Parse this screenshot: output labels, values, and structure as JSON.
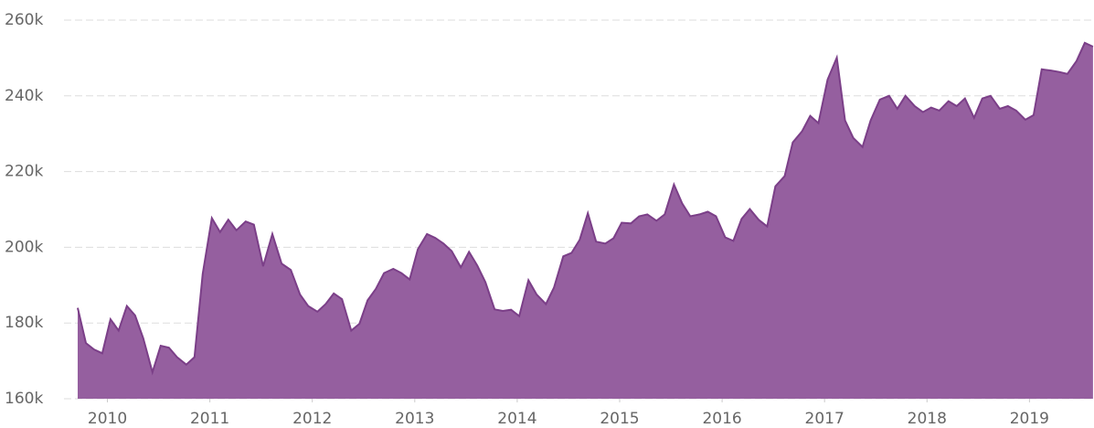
{
  "chart_data": {
    "type": "area",
    "color": "#955f9f",
    "line_color": "#7b3f88",
    "grid": true,
    "xlim": [
      2009.71,
      2019.63
    ],
    "xticks": [
      2010,
      2011,
      2012,
      2013,
      2014,
      2015,
      2016,
      2017,
      2018,
      2019
    ],
    "ylim": [
      160000,
      260000
    ],
    "yticks": [
      {
        "value": 160000,
        "label": "160k"
      },
      {
        "value": 180000,
        "label": "180k"
      },
      {
        "value": 200000,
        "label": "200k"
      },
      {
        "value": 220000,
        "label": "220k"
      },
      {
        "value": 240000,
        "label": "240k"
      },
      {
        "value": 260000,
        "label": "260k"
      }
    ],
    "x": [
      2009.71,
      2009.79,
      2009.87,
      2009.95,
      2010.03,
      2010.11,
      2010.19,
      2010.27,
      2010.35,
      2010.44,
      2010.52,
      2010.6,
      2010.68,
      2010.77,
      2010.85,
      2010.93,
      2011.02,
      2011.1,
      2011.18,
      2011.26,
      2011.35,
      2011.43,
      2011.52,
      2011.61,
      2011.7,
      2011.79,
      2011.88,
      2011.96,
      2012.05,
      2012.13,
      2012.21,
      2012.29,
      2012.38,
      2012.46,
      2012.54,
      2012.62,
      2012.7,
      2012.79,
      2012.87,
      2012.95,
      2013.03,
      2013.12,
      2013.2,
      2013.28,
      2013.36,
      2013.45,
      2013.53,
      2013.61,
      2013.69,
      2013.78,
      2013.86,
      2013.94,
      2014.02,
      2014.11,
      2014.19,
      2014.28,
      2014.36,
      2014.45,
      2014.53,
      2014.61,
      2014.69,
      2014.77,
      2014.86,
      2014.94,
      2015.02,
      2015.11,
      2015.19,
      2015.27,
      2015.36,
      2015.44,
      2015.53,
      2015.61,
      2015.69,
      2015.78,
      2015.86,
      2015.94,
      2016.03,
      2016.11,
      2016.19,
      2016.27,
      2016.36,
      2016.44,
      2016.52,
      2016.61,
      2016.69,
      2016.78,
      2016.86,
      2016.94,
      2017.03,
      2017.12,
      2017.2,
      2017.28,
      2017.37,
      2017.45,
      2017.54,
      2017.63,
      2017.71,
      2017.79,
      2017.88,
      2017.96,
      2018.04,
      2018.12,
      2018.21,
      2018.29,
      2018.37,
      2018.46,
      2018.54,
      2018.62,
      2018.71,
      2018.79,
      2018.87,
      2018.96,
      2019.04,
      2019.12,
      2019.21,
      2019.29,
      2019.37,
      2019.46,
      2019.54,
      2019.62
    ],
    "values": [
      184000,
      174700,
      173000,
      172000,
      181000,
      178000,
      184500,
      182000,
      176000,
      167000,
      174000,
      173500,
      171000,
      169000,
      171000,
      193000,
      207700,
      204000,
      207300,
      204500,
      206800,
      206000,
      195000,
      203500,
      195700,
      194000,
      187500,
      184500,
      183000,
      185000,
      187800,
      186300,
      178000,
      179800,
      186000,
      189000,
      193200,
      194300,
      193200,
      191500,
      199500,
      203500,
      202500,
      201000,
      199000,
      194700,
      198800,
      195200,
      190800,
      183600,
      183200,
      183500,
      181800,
      191300,
      187500,
      185000,
      189400,
      197600,
      198500,
      202000,
      209000,
      201500,
      201000,
      202400,
      206500,
      206300,
      208200,
      208700,
      207000,
      208700,
      216600,
      211600,
      208200,
      208700,
      209400,
      208200,
      202600,
      201700,
      207500,
      210100,
      207200,
      205500,
      216100,
      218800,
      227700,
      230600,
      234700,
      232800,
      244300,
      250100,
      233500,
      228900,
      226500,
      233500,
      239000,
      240000,
      236600,
      240000,
      237300,
      235700,
      236900,
      236100,
      238600,
      237300,
      239300,
      234200,
      239300,
      240000,
      236600,
      237300,
      236100,
      233700,
      234900,
      247000,
      246700,
      246300,
      245800,
      249200,
      254000,
      253000
    ]
  }
}
